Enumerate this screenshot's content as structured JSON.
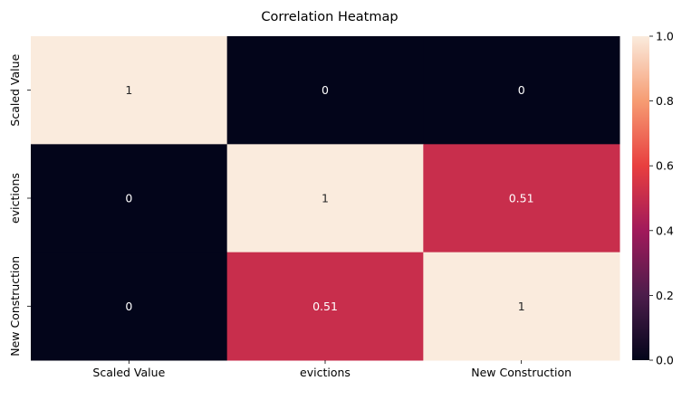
{
  "chart_data": {
    "type": "heatmap",
    "title": "Correlation Heatmap",
    "xlabel": "",
    "ylabel": "",
    "x_categories": [
      "Scaled Value",
      "evictions",
      "New Construction"
    ],
    "y_categories": [
      "Scaled Value",
      "evictions",
      "New Construction"
    ],
    "values": [
      [
        1,
        0,
        0
      ],
      [
        0,
        1,
        0.51
      ],
      [
        0,
        0.51,
        1
      ]
    ],
    "annotations": [
      [
        "1",
        "0",
        "0"
      ],
      [
        "0",
        "1",
        "0.51"
      ],
      [
        "0",
        "0.51",
        "1"
      ]
    ],
    "colorbar": {
      "range": [
        0.0,
        1.0
      ],
      "ticks": [
        0.0,
        0.2,
        0.4,
        0.6,
        0.8,
        1.0
      ],
      "tick_labels": [
        "0.0",
        "0.2",
        "0.4",
        "0.6",
        "0.8",
        "1.0"
      ]
    },
    "colormap": "rocket",
    "colormap_stops": [
      "#03051a",
      "#4c1d4b",
      "#a11a5b",
      "#e83f3f",
      "#f69c73",
      "#faebdd"
    ]
  }
}
